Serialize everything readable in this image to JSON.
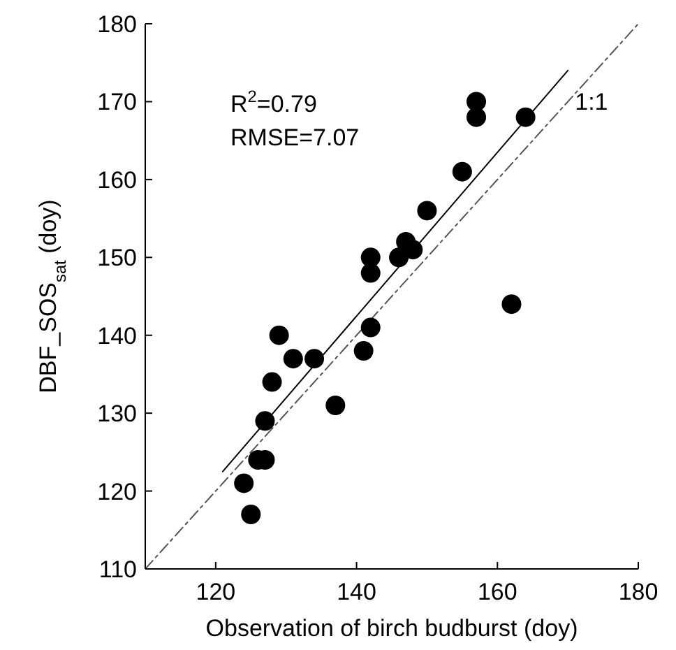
{
  "chart_data": {
    "type": "scatter",
    "xlabel": "Observation of birch budburst (doy)",
    "ylabel": "DBF_SOS$_{sat}$ (doy)",
    "xlim": [
      110,
      180
    ],
    "ylim": [
      110,
      180
    ],
    "xticks": [
      120,
      140,
      160,
      180
    ],
    "yticks": [
      110,
      120,
      130,
      140,
      150,
      160,
      170,
      180
    ],
    "grid": false,
    "annotations": [
      "R$^{2}$=0.79",
      "RMSE=7.07",
      {
        "text": "1:1",
        "x": 171,
        "y": 170
      }
    ],
    "series": [
      {
        "color": "#000000",
        "marker": "circle",
        "x": [
          124,
          125,
          126,
          127,
          127,
          128,
          129,
          131,
          134,
          137,
          141,
          142,
          142,
          142,
          146,
          147,
          148,
          150,
          155,
          157,
          157,
          164,
          162
        ],
        "values": [
          121,
          117,
          124,
          124,
          129,
          134,
          140,
          137,
          137,
          131,
          138,
          141,
          148,
          150,
          150,
          152,
          151,
          156,
          161,
          168,
          170,
          168,
          144
        ]
      },
      {
        "type": "line",
        "color": "#000000",
        "line_style": "solid",
        "x": [
          121,
          170
        ],
        "values": [
          122.5,
          174
        ]
      },
      {
        "type": "line",
        "color": "#555555",
        "line_style": "dashed",
        "x": [
          110,
          180
        ],
        "values": [
          110,
          180
        ]
      }
    ]
  }
}
